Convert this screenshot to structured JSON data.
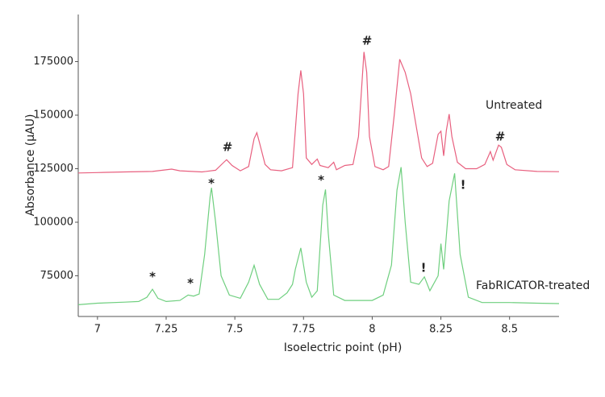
{
  "chart_data": {
    "type": "line",
    "xlabel": "Isoelectric point (pH)",
    "ylabel": "Absorbance (µAU)",
    "xlim": [
      6.93,
      8.68
    ],
    "ylim": [
      56000,
      197000
    ],
    "xticks": [
      7,
      7.25,
      7.5,
      7.75,
      8,
      8.25,
      8.5
    ],
    "yticks": [
      75000,
      100000,
      125000,
      150000,
      175000
    ],
    "grid": false,
    "series": [
      {
        "name": "Untreated",
        "color": "#e8607f",
        "x": [
          6.93,
          7.0,
          7.1,
          7.2,
          7.27,
          7.3,
          7.38,
          7.43,
          7.46,
          7.47,
          7.49,
          7.52,
          7.55,
          7.57,
          7.58,
          7.59,
          7.61,
          7.63,
          7.67,
          7.71,
          7.73,
          7.74,
          7.75,
          7.76,
          7.78,
          7.8,
          7.81,
          7.84,
          7.86,
          7.87,
          7.9,
          7.93,
          7.95,
          7.97,
          7.98,
          7.99,
          8.01,
          8.04,
          8.06,
          8.08,
          8.1,
          8.12,
          8.14,
          8.16,
          8.18,
          8.2,
          8.22,
          8.24,
          8.25,
          8.26,
          8.27,
          8.28,
          8.29,
          8.31,
          8.34,
          8.38,
          8.41,
          8.43,
          8.44,
          8.46,
          8.47,
          8.49,
          8.52,
          8.6,
          8.68
        ],
        "values": [
          123000,
          123200,
          123500,
          123700,
          124800,
          124000,
          123500,
          124300,
          128000,
          129200,
          126500,
          124000,
          126000,
          139000,
          141800,
          137000,
          127000,
          124500,
          124000,
          125500,
          160000,
          170900,
          160000,
          130000,
          127000,
          129500,
          126500,
          125500,
          128000,
          124500,
          126500,
          127000,
          140000,
          179500,
          170000,
          140000,
          126000,
          124500,
          126000,
          150000,
          176100,
          170000,
          160000,
          145000,
          130000,
          126000,
          127500,
          141000,
          142500,
          131000,
          143000,
          150500,
          140000,
          128000,
          125000,
          125000,
          127000,
          133000,
          129000,
          136000,
          135000,
          127000,
          124500,
          123700,
          123600
        ]
      },
      {
        "name": "FabRICATOR-treated",
        "color": "#6fcf7f",
        "x": [
          6.93,
          7.0,
          7.1,
          7.15,
          7.18,
          7.2,
          7.22,
          7.25,
          7.3,
          7.33,
          7.35,
          7.37,
          7.39,
          7.41,
          7.415,
          7.43,
          7.45,
          7.48,
          7.52,
          7.55,
          7.57,
          7.59,
          7.62,
          7.66,
          7.69,
          7.71,
          7.72,
          7.74,
          7.76,
          7.78,
          7.8,
          7.82,
          7.83,
          7.84,
          7.86,
          7.9,
          7.95,
          8.0,
          8.04,
          8.07,
          8.09,
          8.105,
          8.12,
          8.14,
          8.17,
          8.19,
          8.21,
          8.24,
          8.25,
          8.26,
          8.28,
          8.3,
          8.32,
          8.35,
          8.4,
          8.5,
          8.6,
          8.68
        ],
        "values": [
          61500,
          62200,
          62700,
          63000,
          65000,
          68700,
          64500,
          63000,
          63500,
          66000,
          65500,
          66500,
          85000,
          112000,
          116100,
          100000,
          75000,
          66000,
          64500,
          72000,
          79900,
          71000,
          64000,
          64000,
          67000,
          71000,
          78000,
          88000,
          72000,
          65000,
          68000,
          108000,
          115300,
          95000,
          66000,
          63500,
          63500,
          63500,
          66000,
          80000,
          115000,
          125700,
          100000,
          72000,
          71000,
          74500,
          68000,
          75000,
          90000,
          78000,
          110000,
          122800,
          85000,
          65000,
          62500,
          62500,
          62200,
          62000
        ]
      }
    ],
    "annotations": [
      "#",
      "#",
      "#",
      "*",
      "*",
      "*",
      "*",
      "!",
      "!"
    ]
  }
}
